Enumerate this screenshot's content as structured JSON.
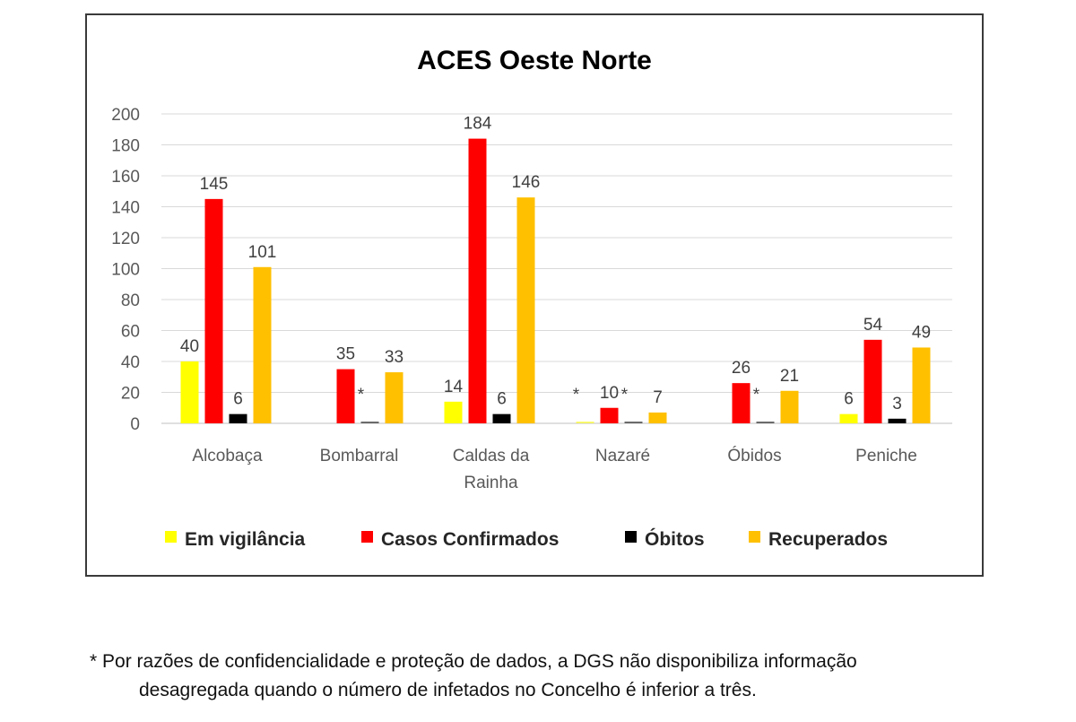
{
  "chart_data": {
    "type": "bar",
    "title": "ACES Oeste Norte",
    "xlabel": "",
    "ylabel": "",
    "ylim": [
      0,
      200
    ],
    "yticks": [
      0,
      20,
      40,
      60,
      80,
      100,
      120,
      140,
      160,
      180,
      200
    ],
    "grid": true,
    "legend_position": "bottom",
    "categories": [
      [
        "Alcobaça"
      ],
      [
        "Bombarral"
      ],
      [
        "Caldas da",
        "Rainha"
      ],
      [
        "Nazaré"
      ],
      [
        "Óbidos"
      ],
      [
        "Peniche"
      ]
    ],
    "series": [
      {
        "name": "Em vigilância",
        "color": "#FFFF00",
        "values": [
          40,
          null,
          14,
          null,
          null,
          6
        ],
        "labels": [
          "40",
          "",
          "14",
          "*",
          "",
          "6"
        ]
      },
      {
        "name": "Casos Confirmados",
        "color": "#FF0000",
        "values": [
          145,
          35,
          184,
          10,
          26,
          54
        ],
        "labels": [
          "145",
          "35",
          "184",
          "10",
          "26",
          "54"
        ]
      },
      {
        "name": "Óbitos",
        "color": "#000000",
        "values": [
          6,
          null,
          6,
          null,
          null,
          3
        ],
        "labels": [
          "6",
          "*",
          "6",
          "*",
          "*",
          "3"
        ]
      },
      {
        "name": "Recuperados",
        "color": "#FFC000",
        "values": [
          101,
          33,
          146,
          7,
          21,
          49
        ],
        "labels": [
          "101",
          "33",
          "146",
          "7",
          "21",
          "49"
        ]
      }
    ]
  },
  "footnote": {
    "line1": "* Por razões de confidencialidade e proteção de dados, a DGS não disponibiliza informação",
    "line2": "desagregada quando o número de infetados no Concelho é inferior a três."
  }
}
